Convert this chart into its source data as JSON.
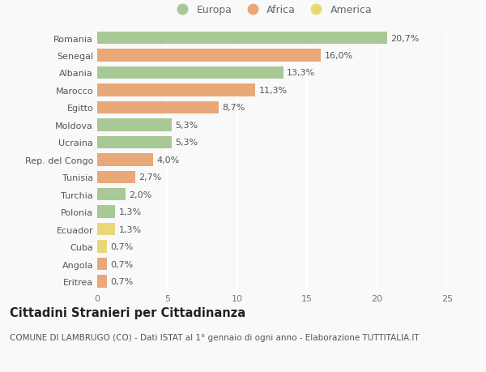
{
  "countries": [
    "Romania",
    "Senegal",
    "Albania",
    "Marocco",
    "Egitto",
    "Moldova",
    "Ucraina",
    "Rep. del Congo",
    "Tunisia",
    "Turchia",
    "Polonia",
    "Ecuador",
    "Cuba",
    "Angola",
    "Eritrea"
  ],
  "values": [
    20.7,
    16.0,
    13.3,
    11.3,
    8.7,
    5.3,
    5.3,
    4.0,
    2.7,
    2.0,
    1.3,
    1.3,
    0.7,
    0.7,
    0.7
  ],
  "labels": [
    "20,7%",
    "16,0%",
    "13,3%",
    "11,3%",
    "8,7%",
    "5,3%",
    "5,3%",
    "4,0%",
    "2,7%",
    "2,0%",
    "1,3%",
    "1,3%",
    "0,7%",
    "0,7%",
    "0,7%"
  ],
  "categories": [
    "Europa",
    "Africa",
    "Europa",
    "Africa",
    "Africa",
    "Europa",
    "Europa",
    "Africa",
    "Africa",
    "Europa",
    "Europa",
    "America",
    "America",
    "Africa",
    "Africa"
  ],
  "colors": {
    "Europa": "#a8c896",
    "Africa": "#e8a878",
    "America": "#e8d878"
  },
  "legend_order": [
    "Europa",
    "Africa",
    "America"
  ],
  "legend_colors": [
    "#a8c896",
    "#e8a878",
    "#e8d878"
  ],
  "legend_labels": [
    "Europa",
    "Africa",
    "America"
  ],
  "xlim": [
    0,
    25
  ],
  "xticks": [
    0,
    5,
    10,
    15,
    20,
    25
  ],
  "title": "Cittadini Stranieri per Cittadinanza",
  "subtitle": "COMUNE DI LAMBRUGO (CO) - Dati ISTAT al 1° gennaio di ogni anno - Elaborazione TUTTITALIA.IT",
  "background_color": "#f9f9f9",
  "grid_color": "#ffffff",
  "bar_height": 0.72,
  "label_fontsize": 8,
  "tick_fontsize": 8,
  "title_fontsize": 10.5,
  "subtitle_fontsize": 7.5
}
